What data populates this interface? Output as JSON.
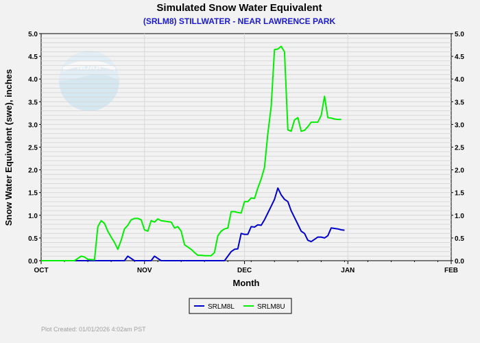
{
  "chart_data": {
    "type": "line",
    "title": "Simulated Snow Water Equivalent",
    "subtitle": "(SRLM8) STILLWATER - NEAR LAWRENCE PARK",
    "xlabel": "Month",
    "ylabel": "Snow Water Equivalent (swe),  inches",
    "x_axis": {
      "start": "2025-10-01",
      "end": "2026-02-01",
      "tick_dates": [
        "2025-10-01",
        "2025-11-01",
        "2025-12-01",
        "2026-01-01",
        "2026-02-01"
      ],
      "tick_labels": [
        "OCT",
        "NOV",
        "DEC",
        "JAN",
        "FEB"
      ]
    },
    "ylim": [
      0,
      5.0
    ],
    "yticks": [
      "0.0",
      "0.5",
      "1.0",
      "1.5",
      "2.0",
      "2.5",
      "3.0",
      "3.5",
      "4.0",
      "4.5",
      "5.0"
    ],
    "grid": true,
    "legend_position": "bottom-center",
    "series": [
      {
        "name": "SRLM8L",
        "color": "#0000cc",
        "points": [
          [
            "2025-10-01",
            0
          ],
          [
            "2025-10-26",
            0
          ],
          [
            "2025-10-27",
            0.1
          ],
          [
            "2025-10-29",
            0
          ],
          [
            "2025-11-03",
            0
          ],
          [
            "2025-11-04",
            0.1
          ],
          [
            "2025-11-06",
            0
          ],
          [
            "2025-11-25",
            0
          ],
          [
            "2025-11-26",
            0.1
          ],
          [
            "2025-11-27",
            0.2
          ],
          [
            "2025-11-28",
            0.25
          ],
          [
            "2025-11-29",
            0.26
          ],
          [
            "2025-11-30",
            0.6
          ],
          [
            "2025-12-01",
            0.58
          ],
          [
            "2025-12-02",
            0.58
          ],
          [
            "2025-12-03",
            0.75
          ],
          [
            "2025-12-04",
            0.74
          ],
          [
            "2025-12-05",
            0.79
          ],
          [
            "2025-12-06",
            0.78
          ],
          [
            "2025-12-07",
            0.9
          ],
          [
            "2025-12-08",
            1.05
          ],
          [
            "2025-12-09",
            1.2
          ],
          [
            "2025-12-10",
            1.35
          ],
          [
            "2025-12-11",
            1.6
          ],
          [
            "2025-12-12",
            1.45
          ],
          [
            "2025-12-13",
            1.35
          ],
          [
            "2025-12-14",
            1.3
          ],
          [
            "2025-12-15",
            1.1
          ],
          [
            "2025-12-16",
            0.95
          ],
          [
            "2025-12-17",
            0.8
          ],
          [
            "2025-12-18",
            0.65
          ],
          [
            "2025-12-19",
            0.6
          ],
          [
            "2025-12-20",
            0.45
          ],
          [
            "2025-12-21",
            0.42
          ],
          [
            "2025-12-22",
            0.47
          ],
          [
            "2025-12-23",
            0.52
          ],
          [
            "2025-12-24",
            0.52
          ],
          [
            "2025-12-25",
            0.5
          ],
          [
            "2025-12-26",
            0.55
          ],
          [
            "2025-12-27",
            0.72
          ],
          [
            "2025-12-28",
            0.71
          ],
          [
            "2025-12-29",
            0.7
          ],
          [
            "2025-12-30",
            0.68
          ],
          [
            "2025-12-31",
            0.67
          ]
        ]
      },
      {
        "name": "SRLM8U",
        "color": "#00ee00",
        "points": [
          [
            "2025-10-01",
            0
          ],
          [
            "2025-10-11",
            0
          ],
          [
            "2025-10-12",
            0.05
          ],
          [
            "2025-10-13",
            0.1
          ],
          [
            "2025-10-14",
            0.08
          ],
          [
            "2025-10-15",
            0.03
          ],
          [
            "2025-10-17",
            0.02
          ],
          [
            "2025-10-18",
            0.75
          ],
          [
            "2025-10-19",
            0.88
          ],
          [
            "2025-10-20",
            0.82
          ],
          [
            "2025-10-21",
            0.65
          ],
          [
            "2025-10-22",
            0.52
          ],
          [
            "2025-10-23",
            0.4
          ],
          [
            "2025-10-24",
            0.25
          ],
          [
            "2025-10-25",
            0.45
          ],
          [
            "2025-10-26",
            0.7
          ],
          [
            "2025-10-27",
            0.78
          ],
          [
            "2025-10-28",
            0.9
          ],
          [
            "2025-10-29",
            0.93
          ],
          [
            "2025-10-30",
            0.93
          ],
          [
            "2025-10-31",
            0.9
          ],
          [
            "2025-11-01",
            0.68
          ],
          [
            "2025-11-02",
            0.65
          ],
          [
            "2025-11-03",
            0.88
          ],
          [
            "2025-11-04",
            0.85
          ],
          [
            "2025-11-05",
            0.92
          ],
          [
            "2025-11-06",
            0.88
          ],
          [
            "2025-11-07",
            0.87
          ],
          [
            "2025-11-08",
            0.86
          ],
          [
            "2025-11-09",
            0.85
          ],
          [
            "2025-11-10",
            0.72
          ],
          [
            "2025-11-11",
            0.75
          ],
          [
            "2025-11-12",
            0.65
          ],
          [
            "2025-11-13",
            0.35
          ],
          [
            "2025-11-14",
            0.3
          ],
          [
            "2025-11-15",
            0.25
          ],
          [
            "2025-11-16",
            0.18
          ],
          [
            "2025-11-17",
            0.12
          ],
          [
            "2025-11-18",
            0.12
          ],
          [
            "2025-11-19",
            0.11
          ],
          [
            "2025-11-20",
            0.11
          ],
          [
            "2025-11-21",
            0.11
          ],
          [
            "2025-11-22",
            0.18
          ],
          [
            "2025-11-23",
            0.55
          ],
          [
            "2025-11-24",
            0.65
          ],
          [
            "2025-11-25",
            0.7
          ],
          [
            "2025-11-26",
            0.72
          ],
          [
            "2025-11-27",
            1.08
          ],
          [
            "2025-11-28",
            1.08
          ],
          [
            "2025-11-29",
            1.06
          ],
          [
            "2025-11-30",
            1.05
          ],
          [
            "2025-12-01",
            1.3
          ],
          [
            "2025-12-02",
            1.3
          ],
          [
            "2025-12-03",
            1.38
          ],
          [
            "2025-12-04",
            1.37
          ],
          [
            "2025-12-05",
            1.6
          ],
          [
            "2025-12-06",
            1.8
          ],
          [
            "2025-12-07",
            2.05
          ],
          [
            "2025-12-08",
            2.8
          ],
          [
            "2025-12-09",
            3.4
          ],
          [
            "2025-12-10",
            4.65
          ],
          [
            "2025-12-11",
            4.66
          ],
          [
            "2025-12-12",
            4.72
          ],
          [
            "2025-12-13",
            4.6
          ],
          [
            "2025-12-14",
            2.88
          ],
          [
            "2025-12-15",
            2.85
          ],
          [
            "2025-12-16",
            3.1
          ],
          [
            "2025-12-17",
            3.15
          ],
          [
            "2025-12-18",
            2.85
          ],
          [
            "2025-12-19",
            2.87
          ],
          [
            "2025-12-20",
            2.95
          ],
          [
            "2025-12-21",
            3.05
          ],
          [
            "2025-12-22",
            3.05
          ],
          [
            "2025-12-23",
            3.05
          ],
          [
            "2025-12-24",
            3.2
          ],
          [
            "2025-12-25",
            3.62
          ],
          [
            "2025-12-26",
            3.15
          ],
          [
            "2025-12-27",
            3.14
          ],
          [
            "2025-12-28",
            3.12
          ],
          [
            "2025-12-29",
            3.11
          ],
          [
            "2025-12-30",
            3.11
          ]
        ]
      }
    ]
  },
  "footer": "Plot Created:  01/01/2026 4:02am PST",
  "watermark_text": "NOAA"
}
